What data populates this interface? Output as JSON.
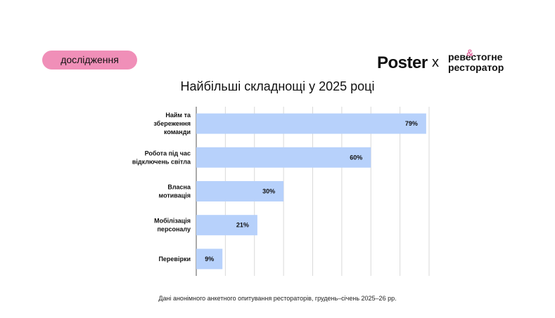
{
  "badge": {
    "label": "дослідження"
  },
  "logos": {
    "poster": "Poster",
    "separator": "x",
    "partner_line1": "ревестогне",
    "partner_line2": "ресторатор",
    "partner_mark": "&"
  },
  "colors": {
    "badge": "#f08fb8",
    "bar": "#b7d1fb",
    "grid": "#d9d9d9"
  },
  "footnote": "Дані анонімного анкетного опитування рестораторів, грудень–січень 2025–26 рр.",
  "chart_data": {
    "type": "bar",
    "orientation": "horizontal",
    "title": "Найбільші складнощі у 2025 році",
    "categories": [
      [
        "Найм та",
        "збереження",
        "команди"
      ],
      [
        "Робота під час",
        "відключень світла"
      ],
      [
        "Власна",
        "мотивація"
      ],
      [
        "Мобілізація",
        "персоналу"
      ],
      [
        "Перевірки"
      ]
    ],
    "values": [
      79,
      60,
      30,
      21,
      9
    ],
    "value_labels": [
      "79%",
      "60%",
      "30%",
      "21%",
      "9%"
    ],
    "xlim": [
      0,
      80
    ],
    "grid": true,
    "legend": "none"
  }
}
